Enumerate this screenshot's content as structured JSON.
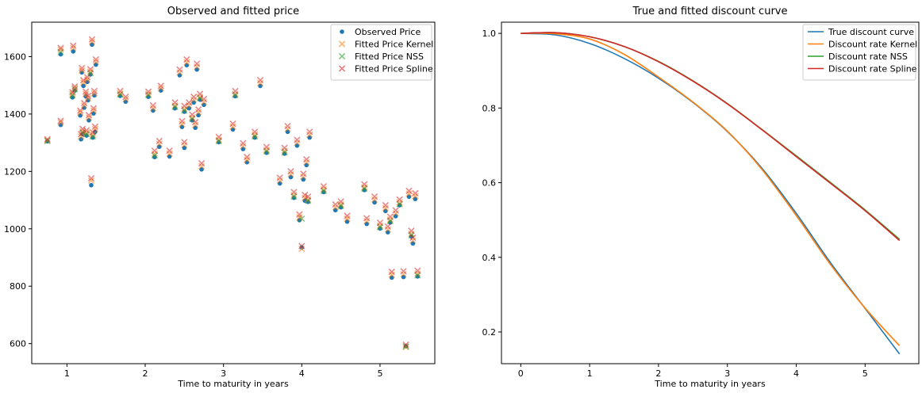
{
  "chart_data": [
    {
      "type": "scatter",
      "title": "Observed and fitted price",
      "xlabel": "Time to maturity in years",
      "ylabel": "",
      "xlim": [
        0.55,
        5.7
      ],
      "ylim": [
        530,
        1720
      ],
      "xticks": [
        1,
        2,
        3,
        4,
        5
      ],
      "yticks": [
        600,
        800,
        1000,
        1200,
        1400,
        1600
      ],
      "legend_position": "top-right",
      "series": [
        {
          "name": "Observed Price",
          "marker": "circle",
          "color": "#1f77b4",
          "x": [
            0.75,
            0.92,
            0.92,
            1.07,
            1.08,
            1.1,
            1.17,
            1.18,
            1.19,
            1.2,
            1.21,
            1.22,
            1.24,
            1.25,
            1.26,
            1.27,
            1.28,
            1.3,
            1.31,
            1.32,
            1.33,
            1.34,
            1.35,
            1.36,
            1.37,
            1.68,
            1.75,
            2.04,
            2.1,
            2.12,
            2.18,
            2.2,
            2.31,
            2.38,
            2.44,
            2.47,
            2.5,
            2.5,
            2.53,
            2.56,
            2.6,
            2.62,
            2.64,
            2.66,
            2.68,
            2.7,
            2.72,
            2.75,
            2.94,
            3.12,
            3.15,
            3.25,
            3.3,
            3.4,
            3.47,
            3.55,
            3.72,
            3.78,
            3.82,
            3.86,
            3.9,
            3.94,
            3.97,
            4.0,
            4.02,
            4.04,
            4.06,
            4.08,
            4.1,
            4.28,
            4.43,
            4.5,
            4.58,
            4.8,
            4.83,
            4.93,
            5.0,
            5.07,
            5.1,
            5.13,
            5.15,
            5.2,
            5.25,
            5.3,
            5.33,
            5.37,
            5.4,
            5.42,
            5.45,
            5.48
          ],
          "y": [
            1305,
            1608,
            1362,
            1458,
            1618,
            1482,
            1395,
            1312,
            1545,
            1330,
            1498,
            1422,
            1462,
            1325,
            1512,
            1448,
            1378,
            1538,
            1152,
            1642,
            1318,
            1402,
            1465,
            1338,
            1572,
            1463,
            1443,
            1460,
            1412,
            1250,
            1286,
            1482,
            1252,
            1420,
            1535,
            1355,
            1408,
            1282,
            1570,
            1420,
            1378,
            1440,
            1352,
            1555,
            1396,
            1450,
            1207,
            1432,
            1302,
            1346,
            1462,
            1278,
            1232,
            1318,
            1498,
            1265,
            1158,
            1262,
            1338,
            1180,
            1108,
            1290,
            1030,
            935,
            1172,
            1098,
            1222,
            1094,
            1318,
            1128,
            1065,
            1075,
            1025,
            1135,
            1017,
            1092,
            1001,
            1062,
            988,
            1022,
            830,
            1044,
            1082,
            832,
            591,
            1112,
            973,
            949,
            1104,
            834
          ]
        },
        {
          "name": "Fitted Price Kernel",
          "marker": "x",
          "color": "#ff7f0e",
          "x": [
            0.75,
            0.92,
            0.92,
            1.07,
            1.08,
            1.1,
            1.17,
            1.18,
            1.19,
            1.2,
            1.21,
            1.22,
            1.24,
            1.25,
            1.26,
            1.27,
            1.28,
            1.3,
            1.31,
            1.32,
            1.33,
            1.34,
            1.35,
            1.36,
            1.37,
            1.68,
            1.75,
            2.04,
            2.1,
            2.12,
            2.18,
            2.2,
            2.31,
            2.38,
            2.44,
            2.47,
            2.5,
            2.5,
            2.53,
            2.56,
            2.6,
            2.62,
            2.64,
            2.66,
            2.68,
            2.7,
            2.72,
            2.75,
            2.94,
            3.12,
            3.15,
            3.25,
            3.3,
            3.4,
            3.47,
            3.55,
            3.72,
            3.78,
            3.82,
            3.86,
            3.9,
            3.94,
            3.97,
            4.0,
            4.02,
            4.04,
            4.06,
            4.08,
            4.1,
            4.28,
            4.43,
            4.5,
            4.58,
            4.8,
            4.83,
            4.93,
            5.0,
            5.07,
            5.1,
            5.13,
            5.15,
            5.2,
            5.25,
            5.3,
            5.33,
            5.37,
            5.4,
            5.42,
            5.45,
            5.48
          ],
          "y": [
            1308,
            1624,
            1370,
            1470,
            1630,
            1490,
            1405,
            1322,
            1552,
            1340,
            1510,
            1430,
            1470,
            1335,
            1520,
            1455,
            1388,
            1548,
            1168,
            1652,
            1328,
            1412,
            1472,
            1348,
            1582,
            1472,
            1452,
            1470,
            1420,
            1262,
            1296,
            1490,
            1262,
            1430,
            1545,
            1365,
            1418,
            1292,
            1580,
            1430,
            1388,
            1450,
            1362,
            1565,
            1406,
            1460,
            1218,
            1442,
            1310,
            1356,
            1470,
            1288,
            1240,
            1328,
            1508,
            1275,
            1168,
            1272,
            1348,
            1190,
            1118,
            1300,
            1040,
            930,
            1182,
            1108,
            1232,
            1102,
            1328,
            1138,
            1075,
            1085,
            1035,
            1145,
            1027,
            1102,
            1011,
            1072,
            998,
            1032,
            840,
            1054,
            1092,
            842,
            588,
            1122,
            983,
            959,
            1114,
            844
          ]
        },
        {
          "name": "Fitted Price NSS",
          "marker": "x",
          "color": "#2ca02c",
          "x": [
            0.75,
            0.92,
            1.07,
            1.1,
            1.2,
            1.25,
            1.3,
            1.33,
            1.68,
            2.04,
            2.12,
            2.38,
            2.5,
            2.6,
            2.7,
            2.94,
            3.15,
            3.4,
            3.55,
            3.78,
            3.9,
            4.0,
            4.08,
            4.28,
            4.5,
            4.8,
            5.0,
            5.13,
            5.25,
            5.33,
            5.4,
            5.48
          ],
          "y": [
            1306,
            1616,
            1465,
            1486,
            1335,
            1330,
            1542,
            1322,
            1468,
            1466,
            1256,
            1425,
            1412,
            1383,
            1455,
            1306,
            1466,
            1322,
            1270,
            1266,
            1112,
            1035,
            1098,
            1132,
            1080,
            1140,
            1006,
            1027,
            1086,
            590,
            978,
            838
          ]
        },
        {
          "name": "Fitted Price Spline",
          "marker": "x",
          "color": "#d62728",
          "x": [
            0.75,
            0.92,
            0.92,
            1.07,
            1.08,
            1.1,
            1.17,
            1.18,
            1.19,
            1.2,
            1.21,
            1.22,
            1.24,
            1.25,
            1.26,
            1.27,
            1.28,
            1.3,
            1.31,
            1.32,
            1.33,
            1.34,
            1.35,
            1.36,
            1.37,
            1.68,
            1.75,
            2.04,
            2.1,
            2.12,
            2.18,
            2.2,
            2.31,
            2.38,
            2.44,
            2.47,
            2.5,
            2.5,
            2.53,
            2.56,
            2.6,
            2.62,
            2.64,
            2.66,
            2.68,
            2.7,
            2.72,
            2.75,
            2.94,
            3.12,
            3.15,
            3.25,
            3.3,
            3.4,
            3.47,
            3.55,
            3.72,
            3.78,
            3.82,
            3.86,
            3.9,
            3.94,
            3.97,
            4.0,
            4.02,
            4.04,
            4.06,
            4.08,
            4.1,
            4.28,
            4.43,
            4.5,
            4.58,
            4.8,
            4.83,
            4.93,
            5.0,
            5.07,
            5.1,
            5.13,
            5.15,
            5.2,
            5.25,
            5.3,
            5.33,
            5.37,
            5.4,
            5.42,
            5.45,
            5.48
          ],
          "y": [
            1312,
            1630,
            1376,
            1476,
            1638,
            1496,
            1412,
            1330,
            1560,
            1348,
            1518,
            1438,
            1478,
            1343,
            1528,
            1463,
            1396,
            1556,
            1176,
            1660,
            1336,
            1420,
            1480,
            1356,
            1590,
            1480,
            1460,
            1478,
            1430,
            1272,
            1306,
            1498,
            1272,
            1440,
            1555,
            1375,
            1428,
            1302,
            1590,
            1440,
            1398,
            1460,
            1372,
            1575,
            1416,
            1470,
            1228,
            1452,
            1320,
            1366,
            1480,
            1298,
            1250,
            1338,
            1518,
            1285,
            1178,
            1282,
            1358,
            1200,
            1128,
            1310,
            1050,
            940,
            1192,
            1118,
            1242,
            1112,
            1338,
            1148,
            1085,
            1095,
            1045,
            1155,
            1037,
            1112,
            1021,
            1082,
            1008,
            1042,
            850,
            1064,
            1102,
            852,
            596,
            1132,
            993,
            969,
            1124,
            854
          ]
        }
      ]
    },
    {
      "type": "line",
      "title": "True and fitted discount curve",
      "xlabel": "Time to maturity in years",
      "ylabel": "",
      "xlim": [
        -0.28,
        5.78
      ],
      "ylim": [
        0.115,
        1.03
      ],
      "xticks": [
        0,
        1,
        2,
        3,
        4,
        5
      ],
      "yticks": [
        0.2,
        0.4,
        0.6,
        0.8,
        1.0
      ],
      "ytick_labels": [
        "0.2",
        "0.4",
        "0.6",
        "0.8",
        "1.0"
      ],
      "legend_position": "top-right",
      "x": [
        0,
        0.5,
        1.0,
        1.5,
        2.0,
        2.5,
        3.0,
        3.5,
        4.0,
        4.5,
        5.0,
        5.5
      ],
      "series": [
        {
          "name": "True discount curve",
          "color": "#1f77b4",
          "values": [
            1.0,
            0.996,
            0.973,
            0.933,
            0.88,
            0.815,
            0.737,
            0.639,
            0.518,
            0.385,
            0.263,
            0.141
          ]
        },
        {
          "name": "Discount rate Kernel",
          "color": "#ff7f0e",
          "values": [
            1.0,
            0.999,
            0.985,
            0.944,
            0.883,
            0.816,
            0.738,
            0.636,
            0.512,
            0.38,
            0.264,
            0.163
          ]
        },
        {
          "name": "Discount rate NSS",
          "color": "#2ca02c",
          "values": [
            1.0,
            1.002,
            0.991,
            0.965,
            0.925,
            0.873,
            0.812,
            0.743,
            0.672,
            0.6,
            0.527,
            0.448
          ]
        },
        {
          "name": "Discount rate Spline",
          "color": "#d62728",
          "values": [
            1.0,
            1.002,
            0.991,
            0.965,
            0.924,
            0.872,
            0.811,
            0.742,
            0.67,
            0.598,
            0.525,
            0.445
          ]
        }
      ]
    }
  ]
}
